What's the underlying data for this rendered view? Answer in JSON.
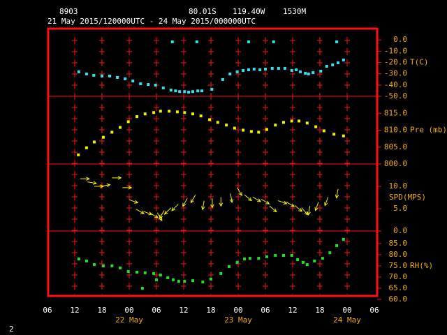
{
  "chart_data": {
    "type": "scatter",
    "station": "8903",
    "latitude": "80.01S",
    "longitude": "119.40W",
    "elevation": "1530M",
    "period": "21 May 2015/120000UTC - 24 May 2015/000000UTC",
    "page_number": "2",
    "xlim": [
      0,
      72
    ],
    "xticks": [
      {
        "value": 0,
        "label": "06"
      },
      {
        "value": 6,
        "label": "12"
      },
      {
        "value": 12,
        "label": "18"
      },
      {
        "value": 18,
        "label": "00"
      },
      {
        "value": 24,
        "label": "06"
      },
      {
        "value": 30,
        "label": "12"
      },
      {
        "value": 36,
        "label": "18"
      },
      {
        "value": 42,
        "label": "00"
      },
      {
        "value": 48,
        "label": "06"
      },
      {
        "value": 54,
        "label": "12"
      },
      {
        "value": 60,
        "label": "18"
      },
      {
        "value": 66,
        "label": "00"
      },
      {
        "value": 72,
        "label": "06"
      }
    ],
    "day_labels": [
      {
        "value": 18,
        "label": "22 May"
      },
      {
        "value": 42,
        "label": "23 May"
      },
      {
        "value": 66,
        "label": "24 May"
      }
    ],
    "panels": [
      {
        "type": "scatter",
        "ylabel": "T(C)",
        "color": "#33e0f0",
        "ylim": [
          -50,
          10
        ],
        "yticks": [
          {
            "value": 0,
            "label": "0.0"
          },
          {
            "value": -10,
            "label": "-10.0"
          },
          {
            "value": -20,
            "label": "-20.0"
          },
          {
            "value": -30,
            "label": "-30.0"
          },
          {
            "value": -40,
            "label": "-40.0"
          },
          {
            "value": -50,
            "label": "-50.0"
          }
        ],
        "x": [
          6.9,
          8.6,
          10.2,
          12.0,
          13.7,
          15.4,
          17.1,
          18.8,
          20.5,
          22.2,
          23.8,
          25.5,
          27.2,
          28.2,
          29.1,
          30.2,
          31.1,
          32.0,
          33.1,
          34.0,
          36.2,
          38.6,
          40.2,
          41.8,
          43.1,
          44.3,
          45.5,
          46.8,
          48.0,
          49.5,
          50.9,
          52.3,
          53.8,
          54.8,
          55.7,
          56.8,
          57.5,
          58.5,
          60.2,
          61.5,
          62.8,
          64.0,
          65.2,
          27.5,
          32.9,
          44.3,
          49.8,
          63.7
        ],
        "values": [
          -28.3,
          -30.2,
          -31.4,
          -32.0,
          -32.0,
          -33.3,
          -34.5,
          -36.4,
          -38.9,
          -39.5,
          -40.1,
          -42.6,
          -44.5,
          -45.2,
          -45.8,
          -45.8,
          -46.3,
          -45.8,
          -45.2,
          -45.2,
          -43.8,
          -35.1,
          -30.2,
          -28.3,
          -27.1,
          -26.5,
          -25.9,
          -26.5,
          -25.9,
          -25.2,
          -25.2,
          -25.2,
          -27.1,
          -26.5,
          -28.3,
          -29.6,
          -30.2,
          -29.0,
          -27.7,
          -23.4,
          -22.1,
          -20.3,
          -17.8,
          -1.7,
          -1.7,
          -1.7,
          -1.7,
          -1.7
        ]
      },
      {
        "type": "scatter",
        "ylabel": "Pre (mb)",
        "color": "#f0f000",
        "ylim": [
          800,
          820
        ],
        "yticks": [
          {
            "value": 815,
            "label": "815.0"
          },
          {
            "value": 810,
            "label": "810.0"
          },
          {
            "value": 805,
            "label": "805.0"
          },
          {
            "value": 800,
            "label": "800.0"
          }
        ],
        "x": [
          6.8,
          8.6,
          10.3,
          12.3,
          14.2,
          16.0,
          17.8,
          19.7,
          21.5,
          23.4,
          24.9,
          26.8,
          28.6,
          30.2,
          32.0,
          33.8,
          35.7,
          37.5,
          39.4,
          41.2,
          43.1,
          44.9,
          46.5,
          48.3,
          50.2,
          52.0,
          53.8,
          55.4,
          57.2,
          59.1,
          60.9,
          63.1,
          65.2
        ],
        "values": [
          802.7,
          804.8,
          806.5,
          807.9,
          809.4,
          810.8,
          812.5,
          814.0,
          814.8,
          815.2,
          815.6,
          815.6,
          815.4,
          815.2,
          814.8,
          814.2,
          813.1,
          812.3,
          811.5,
          810.6,
          810.0,
          809.6,
          809.4,
          810.2,
          811.5,
          812.3,
          812.7,
          812.7,
          812.1,
          811.0,
          809.8,
          808.8,
          808.3
        ]
      },
      {
        "type": "vector",
        "ylabel": "SPD(MPS)",
        "color": "#f0f000",
        "ylim": [
          0,
          15
        ],
        "yticks": [
          {
            "value": 10,
            "label": "10.0"
          },
          {
            "value": 5,
            "label": "5.0"
          },
          {
            "value": 0,
            "label": "0.0"
          }
        ],
        "x": [
          7.2,
          8.8,
          10.3,
          11.8,
          14.2,
          16.5,
          18.0,
          19.5,
          21.1,
          22.6,
          24.2,
          25.7,
          27.2,
          28.8,
          30.8,
          32.6,
          34.5,
          36.3,
          38.2,
          40.3,
          41.8,
          43.4,
          45.2,
          47.1,
          48.9,
          50.8,
          52.6,
          54.5,
          56.0,
          57.8,
          59.7,
          61.8,
          64.0
        ],
        "values": [
          11.7,
          11.0,
          10.0,
          10.0,
          11.9,
          9.7,
          7.0,
          4.9,
          4.4,
          4.0,
          4.1,
          4.6,
          5.2,
          6.0,
          7.3,
          8.1,
          6.8,
          7.3,
          7.6,
          8.4,
          9.7,
          8.1,
          7.6,
          7.1,
          5.6,
          6.8,
          6.5,
          5.7,
          5.2,
          5.6,
          6.5,
          7.6,
          9.4
        ],
        "directions": [
          0,
          10,
          0,
          -10,
          0,
          0,
          20,
          30,
          20,
          30,
          60,
          120,
          135,
          135,
          120,
          120,
          100,
          90,
          90,
          80,
          60,
          40,
          30,
          30,
          40,
          20,
          30,
          40,
          50,
          100,
          110,
          110,
          100
        ]
      },
      {
        "type": "scatter",
        "ylabel": "RH(%)",
        "color": "#20e020",
        "ylim": [
          60,
          90
        ],
        "yticks": [
          {
            "value": 85,
            "label": "85.0"
          },
          {
            "value": 80,
            "label": "80.0"
          },
          {
            "value": 75,
            "label": "75.0"
          },
          {
            "value": 70,
            "label": "70.0"
          },
          {
            "value": 65,
            "label": "65.0"
          },
          {
            "value": 60,
            "label": "60.0"
          }
        ],
        "x": [
          6.9,
          8.6,
          10.3,
          12.3,
          14.2,
          16.0,
          17.8,
          19.7,
          21.5,
          23.4,
          24.9,
          26.5,
          27.7,
          28.9,
          30.2,
          32.0,
          34.2,
          36.0,
          38.2,
          40.0,
          41.8,
          43.4,
          44.6,
          46.5,
          48.3,
          50.2,
          52.0,
          53.8,
          55.1,
          56.3,
          57.2,
          58.8,
          60.6,
          62.2,
          63.7,
          65.2,
          20.9,
          24.0
        ],
        "values": [
          78.1,
          77.2,
          75.6,
          75.0,
          75.0,
          74.1,
          72.5,
          72.2,
          71.9,
          71.6,
          70.9,
          69.7,
          68.8,
          68.1,
          68.1,
          68.4,
          67.8,
          69.1,
          71.6,
          74.7,
          76.6,
          78.1,
          78.4,
          78.4,
          79.1,
          79.7,
          79.7,
          79.7,
          77.8,
          76.6,
          75.6,
          77.2,
          78.4,
          80.9,
          84.1,
          86.9,
          65.0,
          68.8
        ]
      }
    ]
  }
}
